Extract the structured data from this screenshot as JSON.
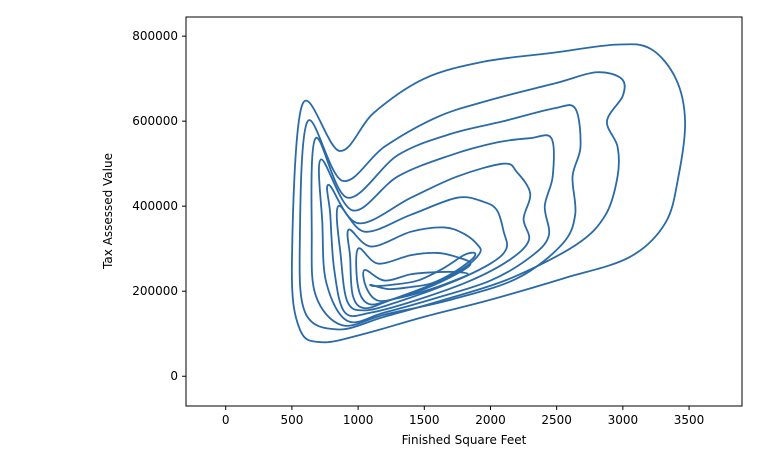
{
  "chart_data": {
    "type": "contour",
    "xlabel": "Finished Square Feet",
    "ylabel": "Tax Assessed Value",
    "xlim": [
      -300,
      3900
    ],
    "ylim": [
      -70000,
      845000
    ],
    "x_ticks": [
      0,
      500,
      1000,
      1500,
      2000,
      2500,
      3000,
      3500
    ],
    "y_ticks": [
      0,
      200000,
      400000,
      600000,
      800000
    ],
    "grid": false,
    "line_color": "#2a6aa7",
    "series": [
      {
        "level": 1,
        "points": [
          [
            580,
            640000
          ],
          [
            860,
            530000
          ],
          [
            1120,
            620000
          ],
          [
            1500,
            700000
          ],
          [
            1950,
            740000
          ],
          [
            2450,
            760000
          ],
          [
            2950,
            780000
          ],
          [
            3210,
            770000
          ],
          [
            3400,
            700000
          ],
          [
            3470,
            600000
          ],
          [
            3420,
            470000
          ],
          [
            3320,
            360000
          ],
          [
            3050,
            280000
          ],
          [
            2550,
            230000
          ],
          [
            2000,
            180000
          ],
          [
            1500,
            140000
          ],
          [
            1050,
            100000
          ],
          [
            730,
            80000
          ],
          [
            560,
            110000
          ],
          [
            500,
            260000
          ]
        ]
      },
      {
        "level": 2,
        "points": [
          [
            620,
            600000
          ],
          [
            880,
            460000
          ],
          [
            1200,
            540000
          ],
          [
            1600,
            610000
          ],
          [
            2000,
            650000
          ],
          [
            2500,
            690000
          ],
          [
            2800,
            715000
          ],
          [
            2990,
            700000
          ],
          [
            3000,
            660000
          ],
          [
            2880,
            600000
          ],
          [
            2960,
            540000
          ],
          [
            2960,
            470000
          ],
          [
            2870,
            380000
          ],
          [
            2650,
            310000
          ],
          [
            2150,
            230000
          ],
          [
            1650,
            180000
          ],
          [
            1200,
            140000
          ],
          [
            850,
            110000
          ],
          [
            600,
            150000
          ],
          [
            560,
            320000
          ]
        ]
      },
      {
        "level": 3,
        "points": [
          [
            680,
            560000
          ],
          [
            920,
            420000
          ],
          [
            1300,
            520000
          ],
          [
            1700,
            570000
          ],
          [
            2100,
            600000
          ],
          [
            2480,
            630000
          ],
          [
            2640,
            630000
          ],
          [
            2680,
            540000
          ],
          [
            2620,
            470000
          ],
          [
            2640,
            380000
          ],
          [
            2540,
            310000
          ],
          [
            2200,
            230000
          ],
          [
            1700,
            180000
          ],
          [
            1200,
            145000
          ],
          [
            880,
            120000
          ],
          [
            680,
            190000
          ],
          [
            650,
            330000
          ]
        ]
      },
      {
        "level": 4,
        "points": [
          [
            720,
            510000
          ],
          [
            960,
            390000
          ],
          [
            1300,
            470000
          ],
          [
            1700,
            520000
          ],
          [
            2050,
            550000
          ],
          [
            2300,
            560000
          ],
          [
            2460,
            560000
          ],
          [
            2470,
            470000
          ],
          [
            2410,
            400000
          ],
          [
            2440,
            330000
          ],
          [
            2300,
            280000
          ],
          [
            2000,
            225000
          ],
          [
            1600,
            185000
          ],
          [
            1200,
            150000
          ],
          [
            920,
            130000
          ],
          [
            760,
            220000
          ],
          [
            730,
            360000
          ]
        ]
      },
      {
        "level": 5,
        "points": [
          [
            780,
            450000
          ],
          [
            1000,
            360000
          ],
          [
            1400,
            420000
          ],
          [
            1750,
            470000
          ],
          [
            2100,
            500000
          ],
          [
            2200,
            480000
          ],
          [
            2300,
            430000
          ],
          [
            2250,
            370000
          ],
          [
            2290,
            320000
          ],
          [
            2150,
            275000
          ],
          [
            1850,
            225000
          ],
          [
            1450,
            180000
          ],
          [
            1100,
            150000
          ],
          [
            900,
            150000
          ],
          [
            820,
            250000
          ],
          [
            790,
            380000
          ]
        ]
      },
      {
        "level": 6,
        "points": [
          [
            850,
            400000
          ],
          [
            1050,
            340000
          ],
          [
            1400,
            380000
          ],
          [
            1750,
            420000
          ],
          [
            1950,
            410000
          ],
          [
            2050,
            390000
          ],
          [
            2100,
            340000
          ],
          [
            2120,
            300000
          ],
          [
            2000,
            265000
          ],
          [
            1700,
            220000
          ],
          [
            1300,
            175000
          ],
          [
            1050,
            155000
          ],
          [
            920,
            175000
          ],
          [
            870,
            280000
          ]
        ]
      },
      {
        "level": 7,
        "points": [
          [
            930,
            345000
          ],
          [
            1100,
            305000
          ],
          [
            1400,
            340000
          ],
          [
            1650,
            350000
          ],
          [
            1800,
            335000
          ],
          [
            1900,
            310000
          ],
          [
            1920,
            290000
          ],
          [
            1800,
            255000
          ],
          [
            1550,
            215000
          ],
          [
            1250,
            180000
          ],
          [
            1050,
            160000
          ],
          [
            960,
            190000
          ],
          [
            940,
            280000
          ]
        ]
      },
      {
        "level": 8,
        "points": [
          [
            1000,
            300000
          ],
          [
            1150,
            265000
          ],
          [
            1400,
            285000
          ],
          [
            1600,
            290000
          ],
          [
            1750,
            280000
          ],
          [
            1850,
            265000
          ],
          [
            1740,
            240000
          ],
          [
            1500,
            205000
          ],
          [
            1250,
            180000
          ],
          [
            1080,
            170000
          ],
          [
            1000,
            210000
          ]
        ]
      },
      {
        "level": 9,
        "points": [
          [
            1050,
            250000
          ],
          [
            1200,
            225000
          ],
          [
            1400,
            240000
          ],
          [
            1600,
            245000
          ],
          [
            1750,
            245000
          ],
          [
            1830,
            240000
          ],
          [
            1750,
            228000
          ],
          [
            1550,
            205000
          ],
          [
            1320,
            185000
          ],
          [
            1150,
            178000
          ],
          [
            1060,
            210000
          ]
        ]
      },
      {
        "level": 10,
        "points": [
          [
            1100,
            215000
          ],
          [
            1230,
            205000
          ],
          [
            1400,
            210000
          ],
          [
            1550,
            218000
          ],
          [
            1700,
            240000
          ],
          [
            1860,
            275000
          ],
          [
            1880,
            290000
          ],
          [
            1800,
            285000
          ],
          [
            1650,
            255000
          ],
          [
            1450,
            225000
          ],
          [
            1250,
            215000
          ],
          [
            1120,
            212000
          ]
        ]
      }
    ]
  }
}
